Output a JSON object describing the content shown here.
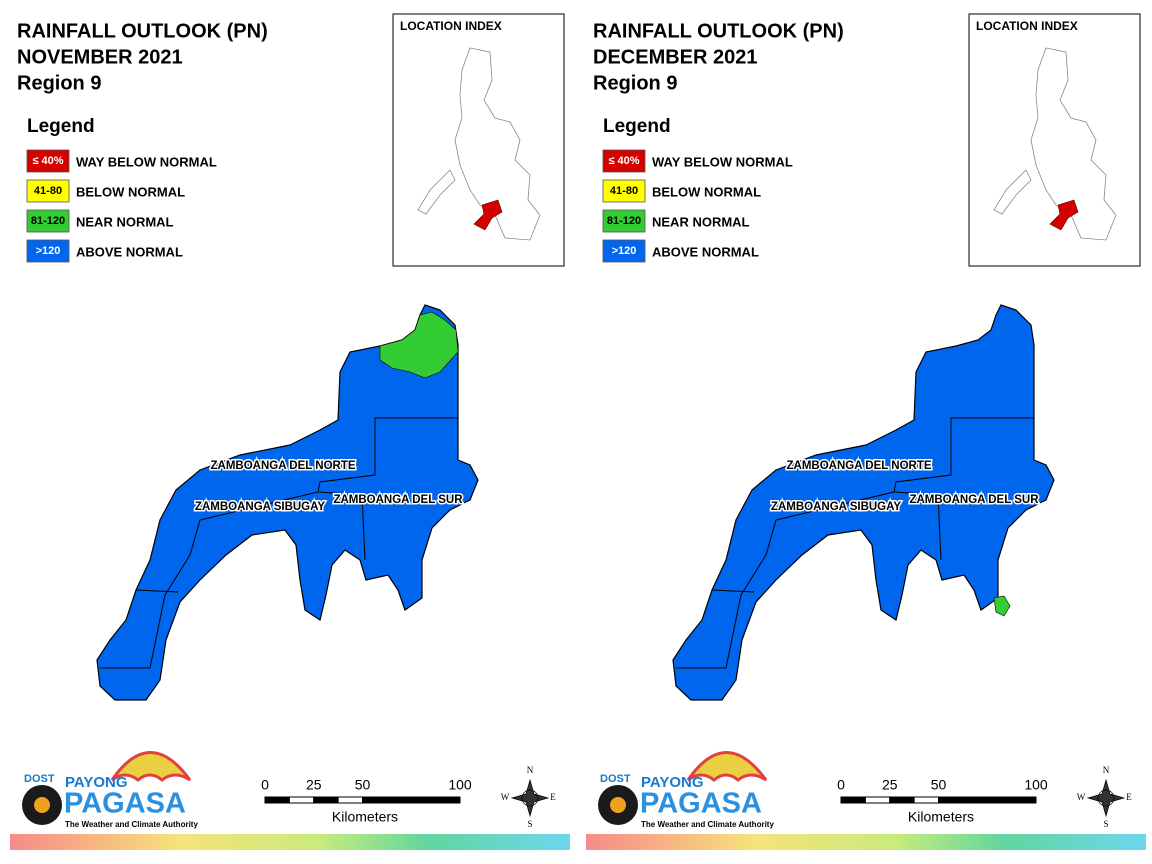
{
  "panels": [
    {
      "title": [
        "RAINFALL OUTLOOK (PN)",
        "NOVEMBER 2021",
        "Region 9"
      ],
      "legend": {
        "title": "Legend",
        "items": [
          {
            "range": "≤ 40%",
            "label": "WAY BELOW NORMAL",
            "color": "#d40000"
          },
          {
            "range": "41-80",
            "label": "BELOW NORMAL",
            "color": "#ffff00"
          },
          {
            "range": "81-120",
            "label": "NEAR NORMAL",
            "color": "#33cc33"
          },
          {
            "range": ">120",
            "label": "ABOVE NORMAL",
            "color": "#0066ee"
          }
        ]
      },
      "inset_title": "LOCATION INDEX",
      "provinces": [
        "ZAMBOANGA DEL NORTE",
        "ZAMBOANGA SIBUGAY",
        "ZAMBOANGA DEL SUR"
      ],
      "scale": {
        "ticks": [
          0,
          25,
          50,
          100
        ],
        "unit": "Kilometers"
      },
      "compass": {
        "n": "N",
        "e": "E",
        "s": "S",
        "w": "W"
      },
      "logo": {
        "agency": "DOST",
        "brand": "PAYONG",
        "name": "PAGASA",
        "tagline": "The Weather and Climate Authority"
      }
    },
    {
      "title": [
        "RAINFALL OUTLOOK (PN)",
        "DECEMBER 2021",
        "Region 9"
      ],
      "legend": {
        "title": "Legend",
        "items": [
          {
            "range": "≤ 40%",
            "label": "WAY BELOW NORMAL",
            "color": "#d40000"
          },
          {
            "range": "41-80",
            "label": "BELOW NORMAL",
            "color": "#ffff00"
          },
          {
            "range": "81-120",
            "label": "NEAR NORMAL",
            "color": "#33cc33"
          },
          {
            "range": ">120",
            "label": "ABOVE NORMAL",
            "color": "#0066ee"
          }
        ]
      },
      "inset_title": "LOCATION INDEX",
      "provinces": [
        "ZAMBOANGA DEL NORTE",
        "ZAMBOANGA SIBUGAY",
        "ZAMBOANGA DEL SUR"
      ],
      "scale": {
        "ticks": [
          0,
          25,
          50,
          100
        ],
        "unit": "Kilometers"
      },
      "compass": {
        "n": "N",
        "e": "E",
        "s": "S",
        "w": "W"
      },
      "logo": {
        "agency": "DOST",
        "brand": "PAYONG",
        "name": "PAGASA",
        "tagline": "The Weather and Climate Authority"
      }
    }
  ]
}
